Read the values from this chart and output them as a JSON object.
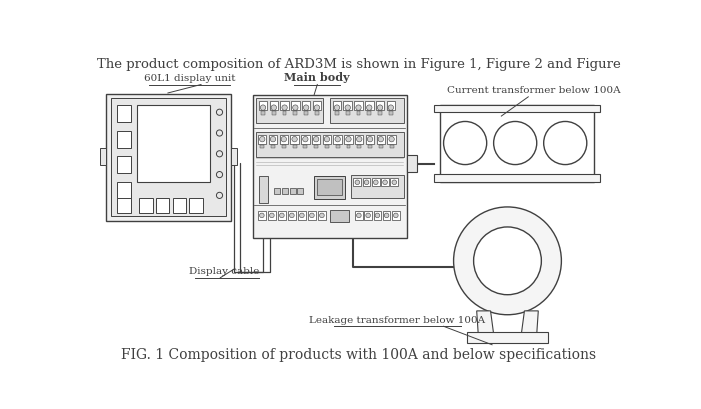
{
  "title": "The product composition of ARD3M is shown in Figure 1, Figure 2 and Figure",
  "caption": "FIG. 1 Composition of products with 100A and below specifications",
  "label_display_unit": "60L1 display unit",
  "label_main_body": "Main body",
  "label_current_transformer": "Current transformer below 100A",
  "label_display_cable": "Display cable",
  "label_leakage_transformer": "Leakage transformer below 100A",
  "bg_color": "#ffffff",
  "line_color": "#404040",
  "fill_light": "#f5f5f5",
  "fill_mid": "#e8e8e8",
  "fill_dark": "#d0d0d0",
  "title_fontsize": 9.5,
  "caption_fontsize": 10,
  "label_fontsize": 7.5
}
